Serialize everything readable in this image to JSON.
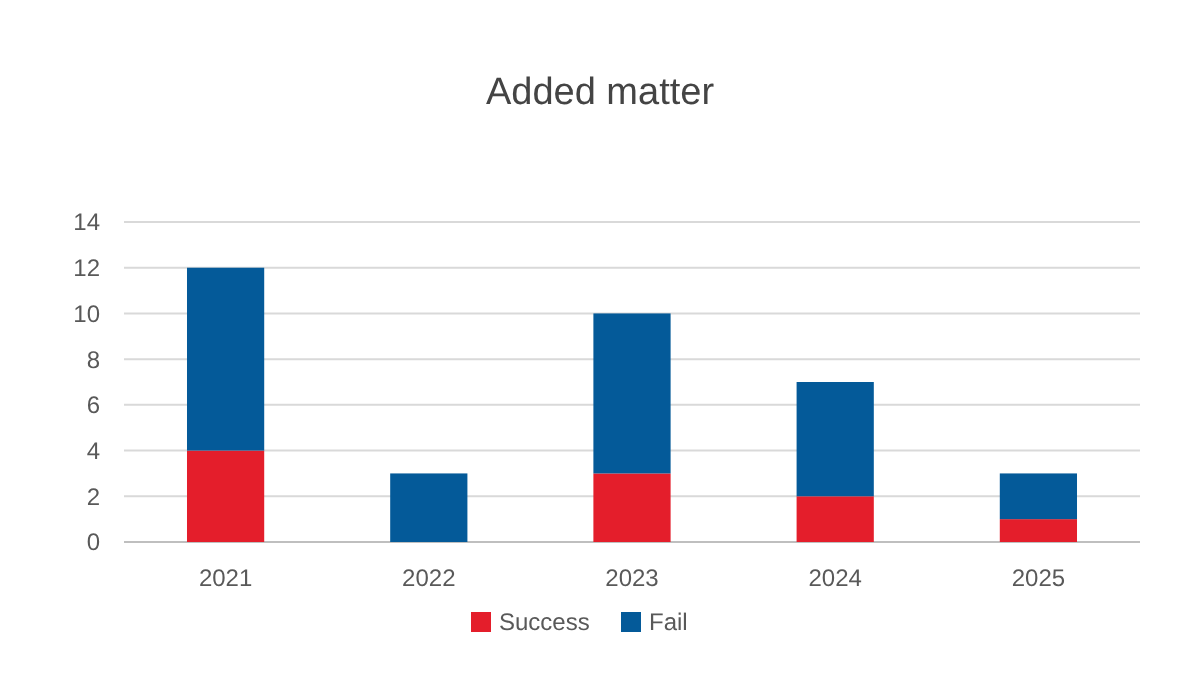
{
  "chart_data": {
    "type": "bar",
    "title": "Added matter",
    "categories": [
      "2021",
      "2022",
      "2023",
      "2024",
      "2025"
    ],
    "stacked": true,
    "series": [
      {
        "name": "Success",
        "color": "#e41e2b",
        "values": [
          4,
          0,
          3,
          2,
          1
        ]
      },
      {
        "name": "Fail",
        "color": "#045a99",
        "values": [
          8,
          3,
          7,
          5,
          2
        ]
      }
    ],
    "ylim": [
      0,
      14
    ],
    "yticks": [
      0,
      2,
      4,
      6,
      8,
      10,
      12,
      14
    ],
    "grid": "y",
    "legend": "bottom"
  }
}
